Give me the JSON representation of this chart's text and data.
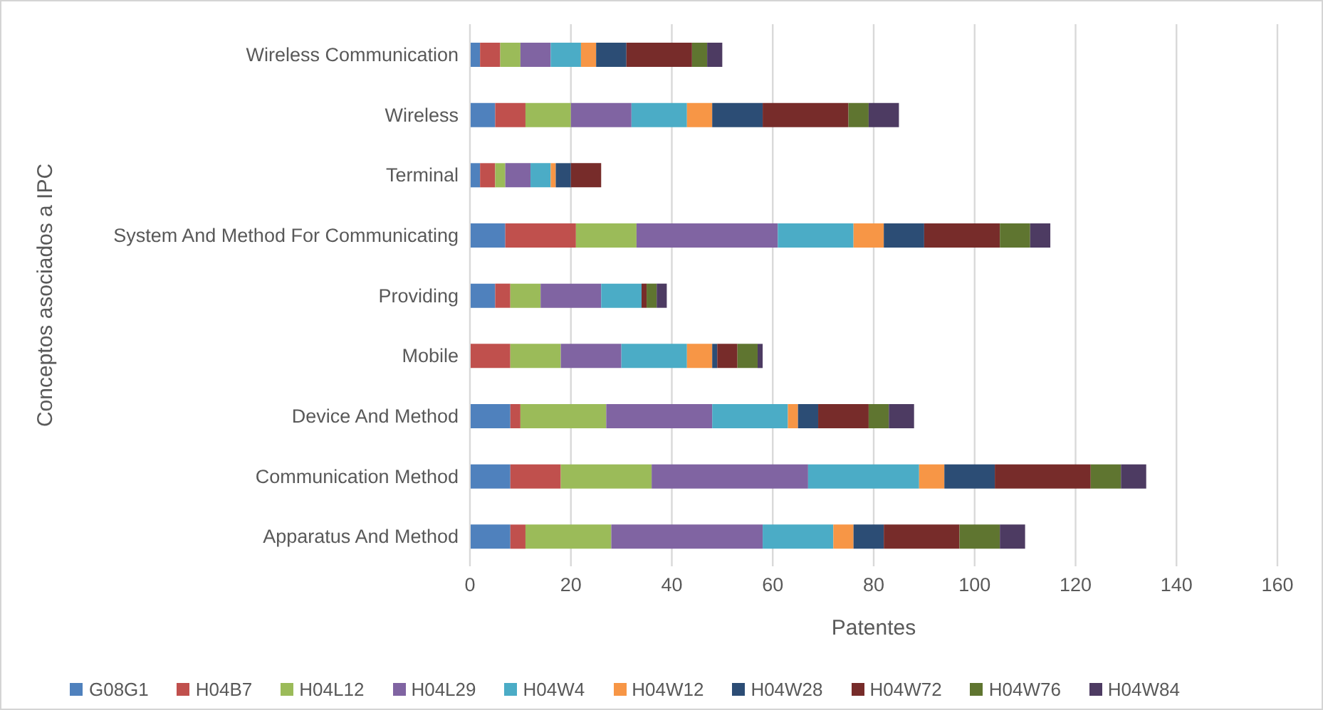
{
  "chart_data": {
    "type": "bar",
    "orientation": "horizontal",
    "stacked": true,
    "categories": [
      "Wireless Communication",
      "Wireless",
      "Terminal",
      "System And Method For Communicating",
      "Providing",
      "Mobile",
      "Device And Method",
      "Communication Method",
      "Apparatus And Method"
    ],
    "series": [
      {
        "name": "G08G1",
        "color": "#4f81bd",
        "values": [
          2,
          5,
          2,
          7,
          5,
          0,
          8,
          8,
          8
        ]
      },
      {
        "name": "H04B7",
        "color": "#c0504d",
        "values": [
          4,
          6,
          3,
          14,
          3,
          8,
          2,
          10,
          3
        ]
      },
      {
        "name": "H04L12",
        "color": "#9bbb59",
        "values": [
          4,
          9,
          2,
          12,
          6,
          10,
          17,
          18,
          17
        ]
      },
      {
        "name": "H04L29",
        "color": "#8064a2",
        "values": [
          6,
          12,
          5,
          28,
          12,
          12,
          21,
          31,
          30
        ]
      },
      {
        "name": "H04W4",
        "color": "#4bacc6",
        "values": [
          6,
          11,
          4,
          15,
          8,
          13,
          15,
          22,
          14
        ]
      },
      {
        "name": "H04W12",
        "color": "#f79646",
        "values": [
          3,
          5,
          1,
          6,
          0,
          5,
          2,
          5,
          4
        ]
      },
      {
        "name": "H04W28",
        "color": "#2c4d75",
        "values": [
          6,
          10,
          3,
          8,
          0,
          1,
          4,
          10,
          6
        ]
      },
      {
        "name": "H04W72",
        "color": "#772c2a",
        "values": [
          13,
          17,
          6,
          15,
          1,
          4,
          10,
          19,
          15
        ]
      },
      {
        "name": "H04W76",
        "color": "#5f7530",
        "values": [
          3,
          4,
          0,
          6,
          2,
          4,
          4,
          6,
          8
        ]
      },
      {
        "name": "H04W84",
        "color": "#4d3b62",
        "values": [
          3,
          6,
          0,
          4,
          2,
          1,
          5,
          5,
          5
        ]
      }
    ],
    "xlabel": "Patentes",
    "ylabel": "Conceptos asociados a IPC",
    "xlim": [
      0,
      160
    ],
    "xticks": [
      0,
      20,
      40,
      60,
      80,
      100,
      120,
      140,
      160
    ],
    "grid": "x",
    "legend": "bottom"
  }
}
